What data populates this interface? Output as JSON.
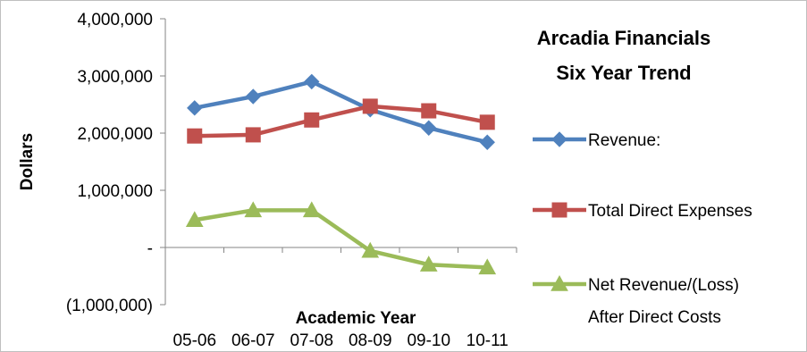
{
  "chart_data": {
    "type": "line",
    "title": "Arcadia Financials",
    "subtitle": "Six Year Trend",
    "xlabel": "Academic Year",
    "ylabel": "Dollars",
    "categories": [
      "05-06",
      "06-07",
      "07-08",
      "08-09",
      "09-10",
      "10-11"
    ],
    "ylim": [
      -1000000,
      4000000
    ],
    "yticks": [
      {
        "value": 4000000,
        "label": "4,000,000"
      },
      {
        "value": 3000000,
        "label": "3,000,000"
      },
      {
        "value": 2000000,
        "label": "2,000,000"
      },
      {
        "value": 1000000,
        "label": "1,000,000"
      },
      {
        "value": 0,
        "label": "-"
      },
      {
        "value": -1000000,
        "label": "(1,000,000)"
      }
    ],
    "grid": false,
    "legend_position": "right",
    "series": [
      {
        "name": "Revenue:",
        "color": "#4f81bd",
        "marker": "diamond",
        "values": [
          2440000,
          2640000,
          2900000,
          2410000,
          2090000,
          1840000
        ]
      },
      {
        "name": "Total Direct Expenses",
        "color": "#c0504d",
        "marker": "square",
        "values": [
          1950000,
          1970000,
          2230000,
          2470000,
          2390000,
          2190000
        ]
      },
      {
        "name": "Net Revenue/(Loss) After Direct Costs",
        "legend_lines": [
          "Net Revenue/(Loss)",
          "After Direct Costs"
        ],
        "color": "#9bbb59",
        "marker": "triangle",
        "values": [
          480000,
          650000,
          650000,
          -60000,
          -300000,
          -350000
        ]
      }
    ]
  }
}
